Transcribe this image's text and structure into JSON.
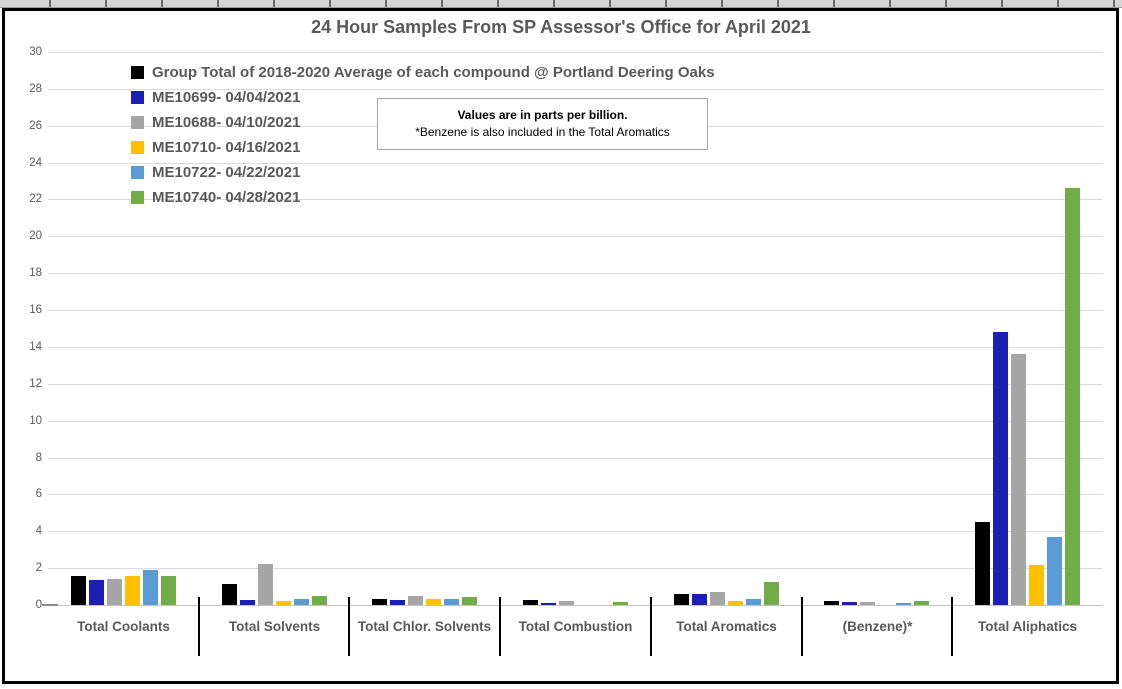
{
  "chart_data": {
    "type": "bar",
    "title": "24 Hour Samples From SP Assessor's Office for April 2021",
    "annotation": {
      "line1": "Values are in parts per billion.",
      "line2": "*Benzene is also included in the Total Aromatics"
    },
    "ylim": [
      0,
      30
    ],
    "ytick_step": 2,
    "grid": true,
    "legend_position": "top-left",
    "units": "parts per billion",
    "categories": [
      "Total Coolants",
      "Total Solvents",
      "Total Chlor. Solvents",
      "Total Combustion",
      "Total Aromatics",
      "(Benzene)*",
      "Total Aliphatics"
    ],
    "series": [
      {
        "name": "Group Total of 2018-2020 Average of each compound @ Portland Deering Oaks",
        "color": "#000000",
        "values": [
          1.55,
          1.15,
          0.35,
          0.25,
          0.6,
          0.2,
          4.5
        ]
      },
      {
        "name": "ME10699- 04/04/2021",
        "color": "#1b1fb3",
        "values": [
          1.35,
          0.25,
          0.25,
          0.1,
          0.6,
          0.15,
          14.8
        ]
      },
      {
        "name": "ME10688- 04/10/2021",
        "color": "#a6a6a6",
        "values": [
          1.4,
          2.2,
          0.5,
          0.2,
          0.7,
          0.15,
          13.6
        ]
      },
      {
        "name": "ME10710- 04/16/2021",
        "color": "#ffc000",
        "values": [
          1.55,
          0.2,
          0.3,
          0,
          0.2,
          0,
          2.15
        ]
      },
      {
        "name": "ME10722- 04/22/2021",
        "color": "#5b9bd5",
        "values": [
          1.9,
          0.3,
          0.35,
          0,
          0.35,
          0.1,
          3.7
        ]
      },
      {
        "name": "ME10740- 04/28/2021",
        "color": "#70ad47",
        "values": [
          1.6,
          0.5,
          0.45,
          0.15,
          1.25,
          0.2,
          22.6
        ]
      }
    ]
  },
  "colors": {
    "text_gray": "#595959",
    "gridline": "#d9d9d9",
    "frame": "#000000"
  }
}
